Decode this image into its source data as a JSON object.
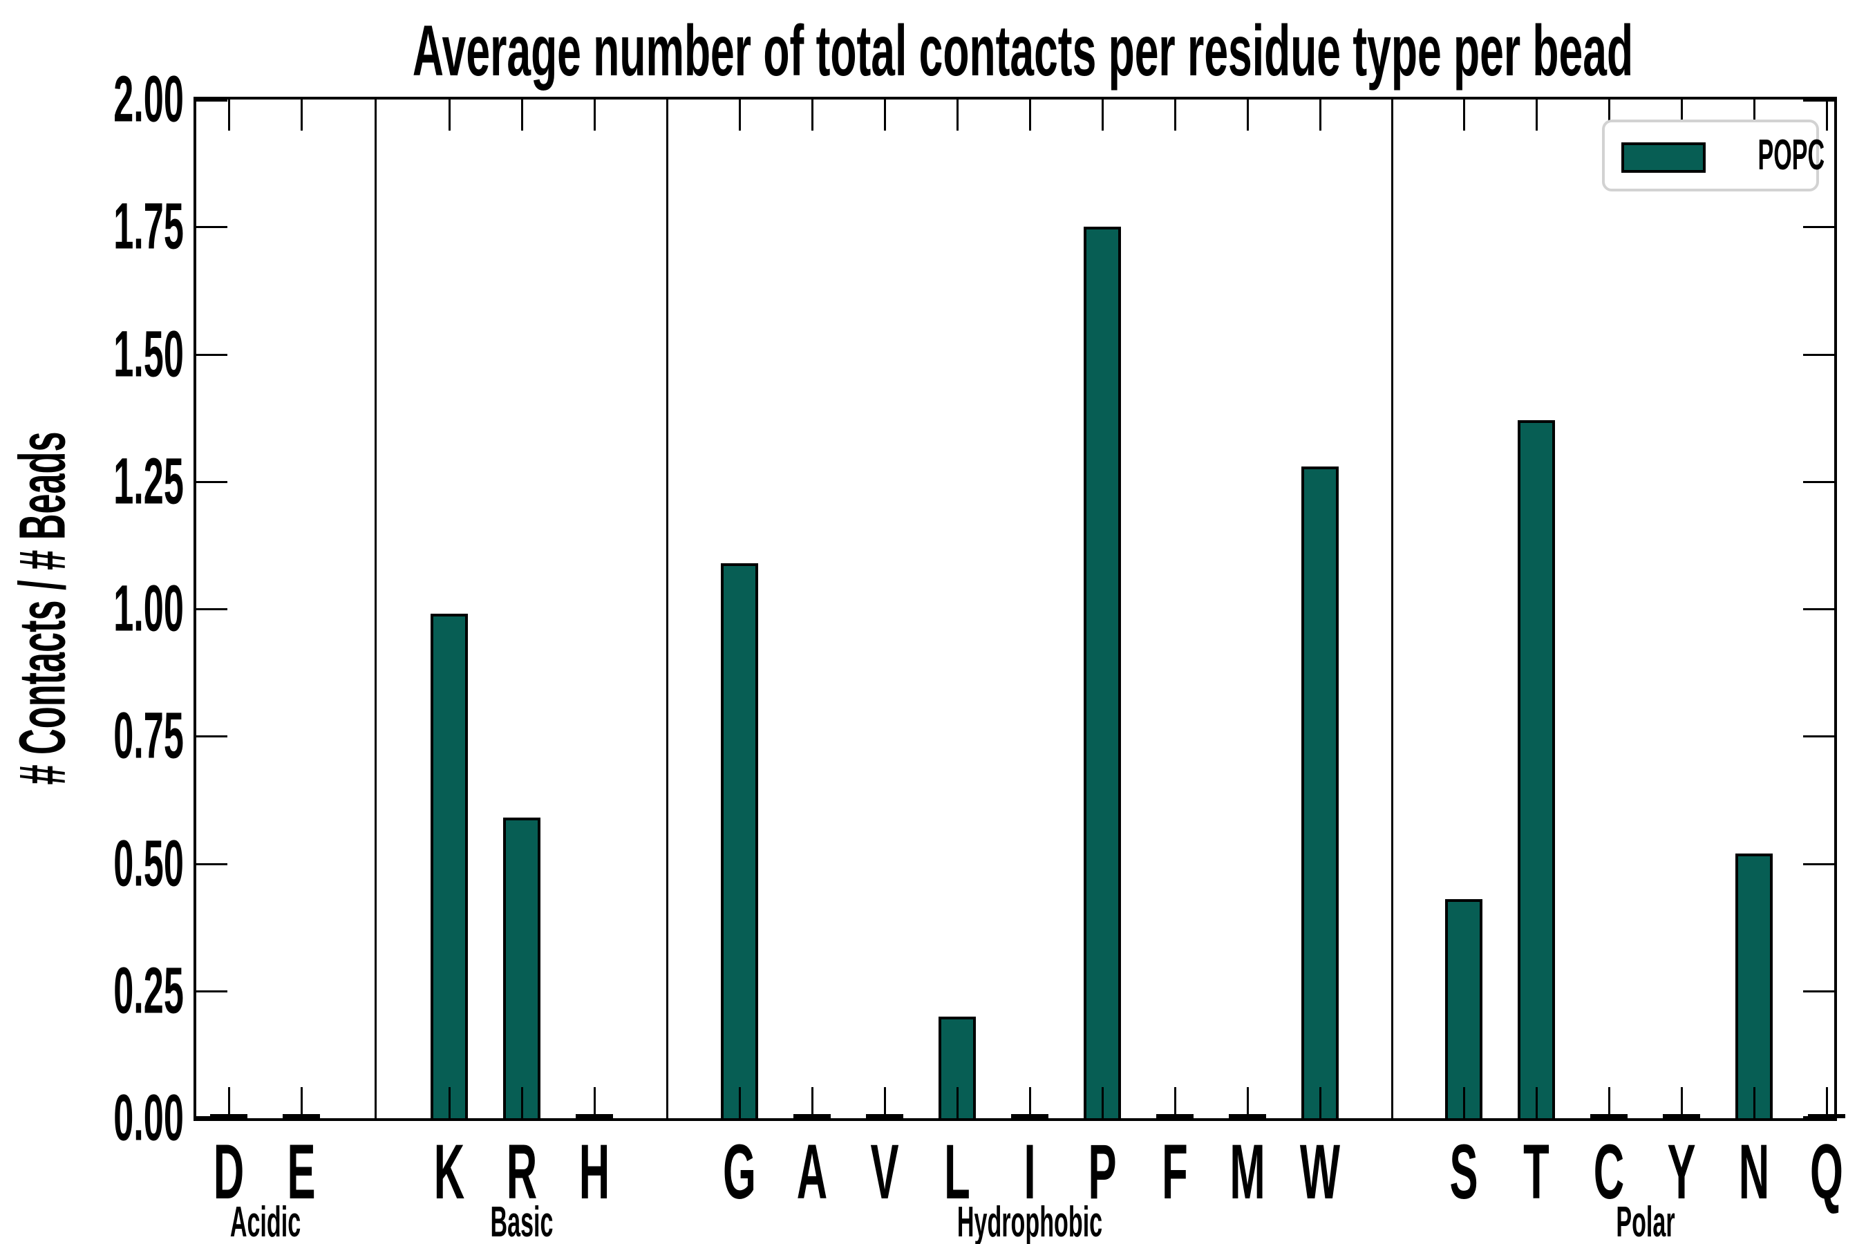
{
  "title": "Average number of total contacts per residue type per bead",
  "y_axis": {
    "label": "# Contacts / # Beads",
    "tick_labels": [
      "2.00",
      "1.75",
      "1.50",
      "1.25",
      "1.00",
      "0.75",
      "0.50",
      "0.25",
      "0.00"
    ]
  },
  "legend": {
    "label": "POPC"
  },
  "colors": {
    "bar_fill": "#075E54",
    "bar_edge": "#000000",
    "axis": "#000000",
    "legend_border": "#d2d2d2",
    "background": "#ffffff"
  },
  "chart_data": {
    "type": "bar",
    "title": "Average number of total contacts per residue type per bead",
    "xlabel": "",
    "ylabel": "# Contacts / # Beads",
    "ylim": [
      0,
      2
    ],
    "ytick_step": 0.25,
    "ytick_labels": [
      "2.00",
      "1.75",
      "1.50",
      "1.25",
      "1.00",
      "0.75",
      "0.50",
      "0.25",
      "0.00"
    ],
    "grid": false,
    "legend_position": "upper right",
    "series_name": "POPC",
    "groups": [
      {
        "label": "Acidic",
        "categories": [
          "D",
          "E"
        ],
        "values": [
          0,
          0
        ]
      },
      {
        "label": "Basic",
        "categories": [
          "K",
          "R",
          "H"
        ],
        "values": [
          0.99,
          0.59,
          0
        ]
      },
      {
        "label": "Hydrophobic",
        "categories": [
          "G",
          "A",
          "V",
          "L",
          "I",
          "P",
          "F",
          "M",
          "W"
        ],
        "values": [
          1.09,
          0,
          0,
          0.2,
          0,
          1.75,
          0,
          0,
          1.28
        ]
      },
      {
        "label": "Polar",
        "categories": [
          "S",
          "T",
          "C",
          "Y",
          "N",
          "Q"
        ],
        "values": [
          0.43,
          1.37,
          0,
          0,
          0.52,
          0
        ]
      }
    ],
    "categories": [
      "D",
      "E",
      "K",
      "R",
      "H",
      "G",
      "A",
      "V",
      "L",
      "I",
      "P",
      "F",
      "M",
      "W",
      "S",
      "T",
      "C",
      "Y",
      "N",
      "Q"
    ],
    "values": [
      0,
      0,
      0.99,
      0.59,
      0,
      1.09,
      0,
      0,
      0.2,
      0,
      1.75,
      0,
      0,
      1.28,
      0.43,
      1.37,
      0,
      0,
      0.52,
      0
    ]
  }
}
